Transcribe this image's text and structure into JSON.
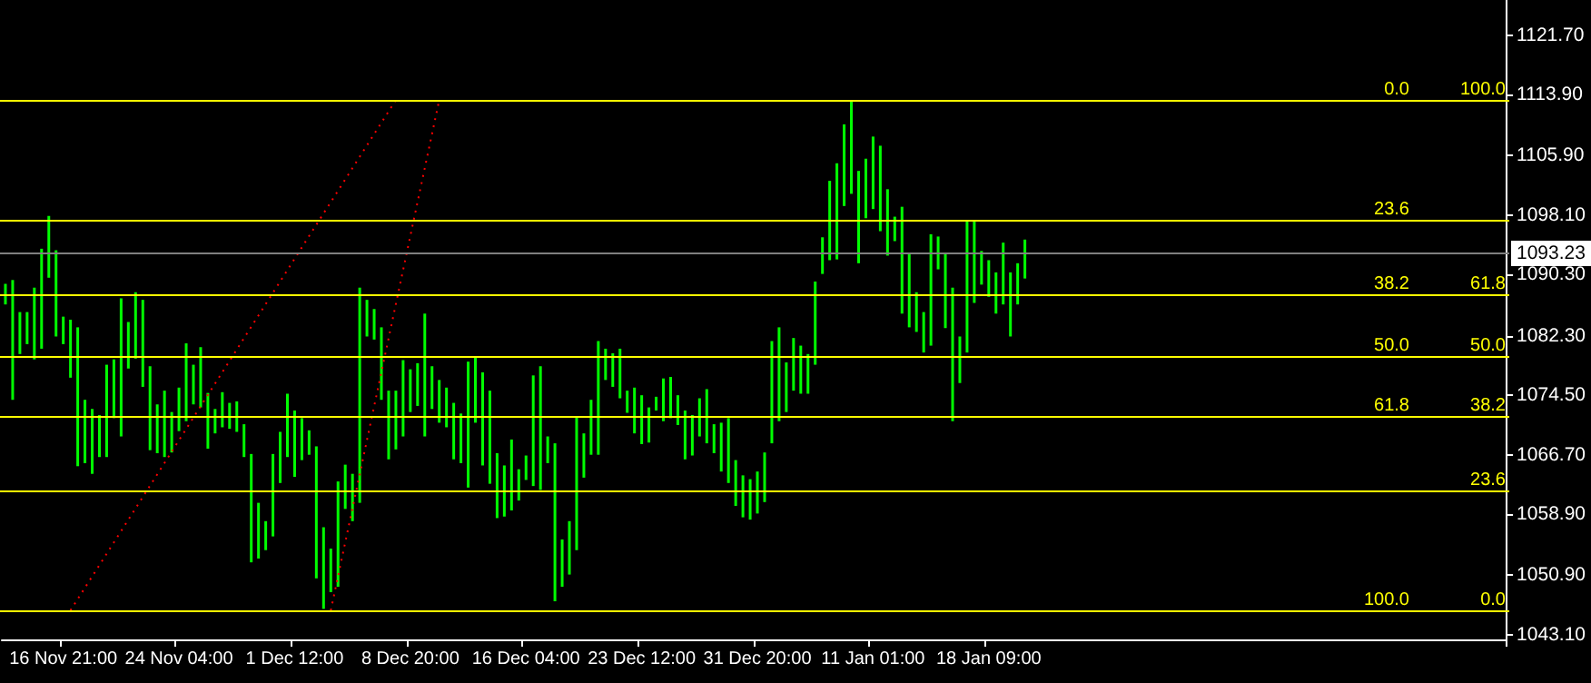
{
  "chart_data": {
    "type": "bar",
    "categories": [
      null,
      null,
      null,
      null,
      null,
      null,
      null,
      null,
      "16 Nov 21:00",
      null,
      null,
      null,
      null,
      null,
      null,
      null,
      null,
      null,
      null,
      null,
      null,
      null,
      null,
      null,
      "24 Nov 04:00",
      null,
      null,
      null,
      null,
      null,
      null,
      null,
      null,
      null,
      null,
      null,
      null,
      null,
      null,
      null,
      "1 Dec 12:00",
      null,
      null,
      null,
      null,
      null,
      null,
      null,
      null,
      null,
      null,
      null,
      null,
      null,
      null,
      null,
      "8 Dec 20:00",
      null,
      null,
      null,
      null,
      null,
      null,
      null,
      null,
      null,
      null,
      null,
      null,
      null,
      null,
      null,
      "16 Dec 04:00",
      null,
      null,
      null,
      null,
      null,
      null,
      null,
      null,
      null,
      null,
      null,
      null,
      null,
      null,
      null,
      "23 Dec 12:00",
      null,
      null,
      null,
      null,
      null,
      null,
      null,
      null,
      null,
      null,
      null,
      null,
      null,
      null,
      null,
      "31 Dec 20:00",
      null,
      null,
      null,
      null,
      null,
      null,
      null,
      null,
      null,
      null,
      null,
      null,
      null,
      null,
      null,
      "11 Jan 01:00",
      null,
      null,
      null,
      null,
      null,
      null,
      null,
      null,
      null,
      null,
      null,
      null,
      null,
      null,
      null,
      "18 Jan 09:00",
      null,
      null,
      null,
      null,
      null,
      null,
      null,
      null,
      null,
      null,
      null,
      null,
      null,
      null,
      null,
      null,
      null,
      null,
      null,
      null,
      null,
      null,
      null,
      null,
      null,
      null,
      null,
      null,
      null,
      null,
      null,
      null,
      null,
      null,
      null,
      null,
      null,
      null,
      null,
      null,
      null,
      null,
      null,
      null,
      null,
      null,
      null,
      null,
      null,
      null,
      null,
      null,
      null,
      null,
      null,
      null,
      null,
      null,
      null,
      null,
      null,
      null,
      null,
      null,
      null,
      null,
      null,
      null,
      null,
      null,
      null
    ],
    "series": [
      {
        "color": "#00ff00",
        "values": [
          2.7,
          15.7,
          5.5,
          4.2,
          9.4,
          13.1,
          8.1,
          11.3,
          3.6,
          7.6,
          18.2,
          8.3,
          8.5,
          5.5,
          12.1,
          7.7,
          18.1,
          6.1,
          8.7,
          11.4,
          11.0,
          6.4,
          8.7,
          5.3,
          5.7,
          10.2,
          5.2,
          7.9,
          7.3,
          3.2,
          4.6,
          3.4,
          4.0,
          4.3,
          14.2,
          7.3,
          3.8,
          10.8,
          6.7,
          8.3,
          8.7,
          5.5,
          3.2,
          17.3,
          10.7,
          5.7,
          13.8,
          5.8,
          6.2,
          28.2,
          4.8,
          4.0,
          9.5,
          9.0,
          7.7,
          10.0,
          5.6,
          5.6,
          16.1,
          5.6,
          5.6,
          5.2,
          7.4,
          6.5,
          16.5,
          8.7,
          12.2,
          12.2,
          8.5,
          6.7,
          9.3,
          4.1,
          3.2,
          14.5,
          16.2,
          3.5,
          20.7,
          6.2,
          7.0,
          17.5,
          5.8,
          7.2,
          14.9,
          4.1,
          4.4,
          6.5,
          2.9,
          6.0,
          6.4,
          4.6,
          1.8,
          5.6,
          5.4,
          3.9,
          6.4,
          5.3,
          5.0,
          7.1,
          3.8,
          6.4,
          8.5,
          6.0,
          5.5,
          5.3,
          5.5,
          6.5,
          13.4,
          12.3,
          6.5,
          6.9,
          6.3,
          5.2,
          10.9,
          4.8,
          10.4,
          12.6,
          10.7,
          12.1,
          12.1,
          7.8,
          9.5,
          11.2,
          8.7,
          3.2,
          14.0,
          9.7,
          5.2,
          5.3,
          14.6,
          4.3,
          9.8,
          17.5,
          6.1,
          17.2,
          10.7,
          4.4,
          4.8,
          5.4,
          8.1,
          8.4,
          5.4,
          5.1,
          null,
          null,
          null,
          null,
          null,
          null,
          null,
          null,
          null,
          null,
          null,
          null,
          null,
          null,
          null,
          null,
          null,
          null,
          null,
          null,
          null,
          null,
          null,
          null,
          null,
          null,
          null,
          null,
          null,
          null,
          null,
          null,
          null,
          null,
          null,
          null,
          null,
          null,
          null,
          null,
          null,
          null,
          null,
          null,
          null,
          null,
          null,
          null,
          null,
          null,
          null,
          null,
          null,
          null,
          null,
          null,
          null,
          null,
          null,
          null,
          null,
          null,
          null,
          null,
          null,
          null
        ],
        "base": [
          1086.4,
          1073.9,
          1079.9,
          1081.2,
          1079.2,
          1080.6,
          1089.9,
          1082.2,
          1081.2,
          1076.8,
          1065.2,
          1065.6,
          1064.2,
          1066.4,
          1066.4,
          1071.5,
          1069.1,
          1078.0,
          1079.3,
          1075.6,
          1067.3,
          1066.9,
          1066.4,
          1067.0,
          1069.8,
          1071.1,
          1073.3,
          1072.9,
          1067.5,
          1069.5,
          1070.3,
          1070.1,
          1069.7,
          1066.4,
          1052.6,
          1053.1,
          1054.2,
          1056.0,
          1063.0,
          1066.4,
          1063.8,
          1066.0,
          1066.7,
          1050.5,
          1046.5,
          1048.7,
          1049.4,
          1059.6,
          1058.0,
          1060.4,
          1082.2,
          1081.8,
          1073.9,
          1066.1,
          1067.4,
          1069.1,
          1072.3,
          1073.1,
          1069.1,
          1072.7,
          1070.9,
          1070.3,
          1066.1,
          1065.6,
          1062.4,
          1070.9,
          1065.3,
          1062.9,
          1058.4,
          1058.6,
          1059.4,
          1060.7,
          1063.4,
          1062.6,
          1062.1,
          1065.6,
          1047.5,
          1049.4,
          1051.0,
          1054.2,
          1063.7,
          1066.7,
          1066.7,
          1076.5,
          1075.6,
          1074.1,
          1072.2,
          1069.5,
          1068.1,
          1068.3,
          1072.5,
          1071.1,
          1071.5,
          1070.6,
          1066.1,
          1066.6,
          1069.1,
          1068.2,
          1066.9,
          1064.5,
          1063.0,
          1060.0,
          1058.5,
          1058.2,
          1059.0,
          1060.5,
          1068.2,
          1071.1,
          1072.3,
          1075.1,
          1074.7,
          1074.7,
          1078.5,
          1090.4,
          1092.2,
          1092.3,
          1099.3,
          1100.9,
          1091.8,
          1097.7,
          1098.9,
          1096.0,
          1092.8,
          1094.7,
          1085.2,
          1083.4,
          1082.8,
          1080.1,
          1081.0,
          1091.0,
          1083.3,
          1071.1,
          1076.1,
          1080.1,
          1086.6,
          1089.0,
          1087.4,
          1085.2,
          1086.4,
          1082.2,
          1086.4,
          1089.8,
          null,
          null,
          null,
          null,
          null,
          null,
          null,
          null,
          null,
          null,
          null,
          null,
          null,
          null,
          null,
          null,
          null,
          null,
          null,
          null,
          null,
          null,
          null,
          null,
          null,
          null,
          null,
          null,
          null,
          null,
          null,
          null,
          null,
          null,
          null,
          null,
          null,
          null,
          null,
          null,
          null,
          null,
          null,
          null,
          null,
          null,
          null,
          null,
          null,
          null,
          null,
          null,
          null,
          null,
          null,
          null,
          null,
          null,
          null,
          null,
          null,
          null,
          null,
          null,
          null,
          null
        ]
      },
      {
        "type": "line",
        "color": "#ff0000",
        "line_style": "dotted",
        "marker": "none",
        "values": [
          null,
          null,
          null,
          null,
          null,
          null,
          null,
          null,
          null,
          1046.3,
          null,
          null,
          null,
          null,
          null,
          null,
          null,
          null,
          null,
          null,
          null,
          null,
          null,
          null,
          null,
          null,
          null,
          null,
          null,
          null,
          null,
          null,
          null,
          null,
          null,
          null,
          null,
          null,
          null,
          null,
          null,
          null,
          null,
          null,
          null,
          null,
          null,
          null,
          null,
          null,
          null,
          null,
          null,
          null,
          1113.2,
          null,
          null,
          null,
          null,
          null,
          null,
          null,
          null,
          null,
          null,
          null,
          null,
          null,
          null,
          null,
          null,
          null,
          null,
          null,
          null,
          null,
          null,
          null,
          null,
          null,
          null,
          null,
          null,
          null,
          null,
          null,
          null,
          null,
          null,
          null,
          null,
          null,
          null,
          null,
          null,
          null,
          null,
          null,
          null,
          null,
          null,
          null,
          null,
          null,
          null,
          null,
          null,
          null,
          null,
          null,
          null,
          null,
          null,
          null,
          null,
          null,
          null,
          null,
          null,
          null,
          null,
          null,
          null,
          null,
          null,
          null,
          null,
          null,
          null,
          null,
          null,
          null,
          null,
          null,
          null,
          null,
          null,
          null,
          null,
          null,
          null,
          null,
          null,
          null,
          null,
          null,
          null,
          null,
          null,
          null,
          null,
          null,
          null,
          null,
          null,
          null,
          null,
          null,
          null,
          null,
          null,
          null,
          null,
          null,
          null,
          null,
          null,
          null,
          null,
          null,
          null,
          null,
          null,
          null,
          null,
          null,
          null,
          null,
          null,
          null,
          null,
          null,
          null,
          null,
          null,
          null,
          null,
          null,
          null,
          null,
          null,
          null,
          null,
          null,
          null,
          null,
          null,
          null,
          null,
          null,
          null,
          null,
          null,
          null,
          null,
          null,
          null,
          null
        ]
      },
      {
        "type": "line",
        "color": "#ff0000",
        "line_style": "dotted",
        "marker": "none",
        "values": [
          null,
          null,
          null,
          null,
          null,
          null,
          null,
          null,
          null,
          null,
          null,
          null,
          null,
          null,
          null,
          null,
          null,
          null,
          null,
          null,
          null,
          null,
          null,
          null,
          null,
          null,
          null,
          null,
          null,
          null,
          null,
          null,
          null,
          null,
          null,
          null,
          null,
          null,
          null,
          null,
          null,
          null,
          null,
          null,
          null,
          1046.3,
          null,
          null,
          null,
          null,
          null,
          null,
          null,
          null,
          null,
          null,
          null,
          null,
          null,
          null,
          1113.2,
          null,
          null,
          null,
          null,
          null,
          null,
          null,
          null,
          null,
          null,
          null,
          null,
          null,
          null,
          null,
          null,
          null,
          null,
          null,
          null,
          null,
          null,
          null,
          null,
          null,
          null,
          null,
          null,
          null,
          null,
          null,
          null,
          null,
          null,
          null,
          null,
          null,
          null,
          null,
          null,
          null,
          null,
          null,
          null,
          null,
          null,
          null,
          null,
          null,
          null,
          null,
          null,
          null,
          null,
          null,
          null,
          null,
          null,
          null,
          null,
          null,
          null,
          null,
          null,
          null,
          null,
          null,
          null,
          null,
          null,
          null,
          null,
          null,
          null,
          null,
          null,
          null,
          null,
          null,
          null,
          null,
          null,
          null,
          null,
          null,
          null,
          null,
          null,
          null,
          null,
          null,
          null,
          null,
          null,
          null,
          null,
          null,
          null,
          null,
          null,
          null,
          null,
          null,
          null,
          null,
          null,
          null,
          null,
          null,
          null,
          null,
          null,
          null,
          null,
          null,
          null,
          null,
          null,
          null,
          null,
          null,
          null,
          null,
          null,
          null,
          null,
          null,
          null,
          null,
          null,
          null,
          null,
          null,
          null,
          null,
          null,
          null,
          null,
          null,
          null,
          null,
          null,
          null,
          null,
          null,
          null,
          null
        ]
      }
    ],
    "ylim": [
      1042.5,
      1126.3
    ],
    "yticks": [
      {
        "value": 1043.1,
        "label": "1043.10"
      },
      {
        "value": 1050.9,
        "label": "1050.90"
      },
      {
        "value": 1058.9,
        "label": "1058.90"
      },
      {
        "value": 1066.7,
        "label": "1066.70"
      },
      {
        "value": 1074.5,
        "label": "1074.50"
      },
      {
        "value": 1082.3,
        "label": "1082.30"
      },
      {
        "value": 1090.3,
        "label": "1090.30"
      },
      {
        "value": 1098.1,
        "label": "1098.10"
      },
      {
        "value": 1105.9,
        "label": "1105.90"
      },
      {
        "value": 1113.9,
        "label": "1113.90"
      },
      {
        "value": 1121.7,
        "label": "1121.70"
      }
    ],
    "ref_lines": [
      {
        "axis": "y",
        "value": 1113.2,
        "color": "#ffff00"
      },
      {
        "axis": "y",
        "value": 1097.4,
        "color": "#ffff00"
      },
      {
        "axis": "y",
        "value": 1087.7,
        "color": "#ffff00"
      },
      {
        "axis": "y",
        "value": 1079.7,
        "color": "#ffff00"
      },
      {
        "axis": "y",
        "value": 1071.8,
        "color": "#ffff00"
      },
      {
        "axis": "y",
        "value": 1062.1,
        "color": "#ffff00"
      },
      {
        "axis": "y",
        "value": 1046.3,
        "color": "#ffff00"
      },
      {
        "axis": "y",
        "value": 1093.23,
        "label": "1093.23",
        "color": "#808080"
      }
    ],
    "annotations": [
      {
        "text": "0.0",
        "y": 1113.2
      },
      {
        "text": "23.6",
        "y": 1097.4
      },
      {
        "text": "38.2",
        "y": 1087.7
      },
      {
        "text": "50.0",
        "y": 1079.7
      },
      {
        "text": "61.8",
        "y": 1071.8
      },
      {
        "text": "100.0",
        "y": 1046.3
      },
      {
        "text": "0.0",
        "y": 1046.3
      },
      {
        "text": "23.6",
        "y": 1062.1
      },
      {
        "text": "38.2",
        "y": 1071.8
      },
      {
        "text": "50.0",
        "y": 1079.7
      },
      {
        "text": "61.8",
        "y": 1087.7
      },
      {
        "text": "100.0",
        "y": 1113.2
      }
    ]
  }
}
